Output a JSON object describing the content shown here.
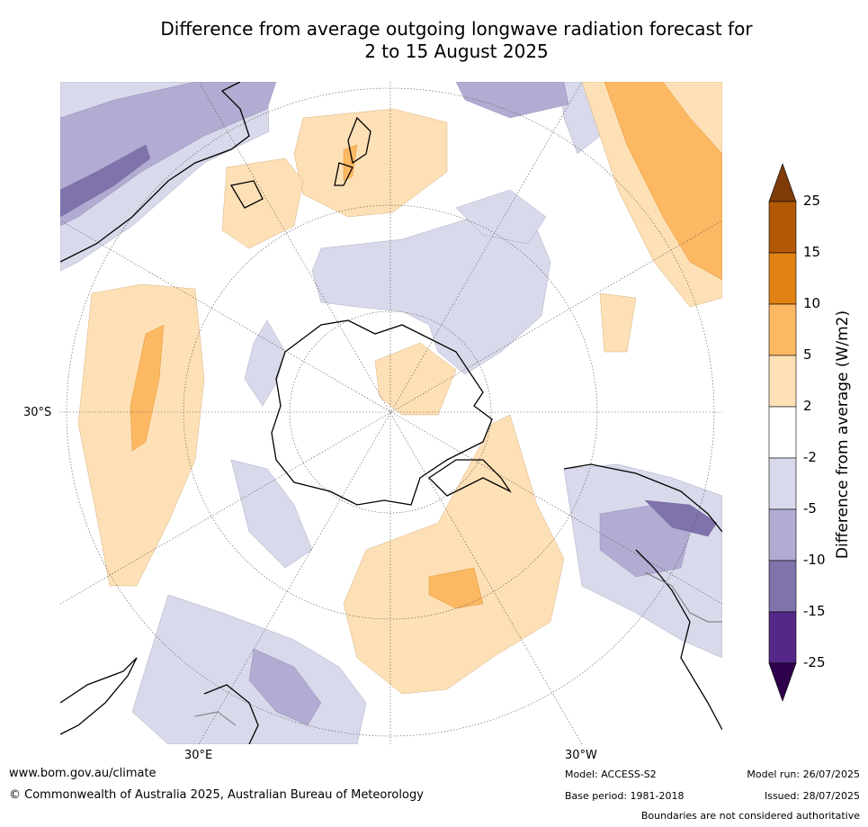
{
  "title": {
    "line1": "Difference from average outgoing longwave radiation forecast for",
    "line2": "2 to 15 August 2025"
  },
  "map": {
    "projection": "south-polar stereographic",
    "graticule_labels": {
      "lat_30s": "30°S",
      "lon_30e": "30°E",
      "lon_30w": "30°W"
    }
  },
  "legend": {
    "axis_label": "Difference from average (W/m2)",
    "ticks": [
      "25",
      "15",
      "10",
      "5",
      "2",
      "-2",
      "-5",
      "-10",
      "-15",
      "-25"
    ],
    "bins": [
      {
        "range": ">25",
        "color": "#7f3b08"
      },
      {
        "range": "15 to 25",
        "color": "#b35806"
      },
      {
        "range": "10 to 15",
        "color": "#e08214"
      },
      {
        "range": "5 to 10",
        "color": "#fdb863"
      },
      {
        "range": "2 to 5",
        "color": "#fee0b6"
      },
      {
        "range": "-2 to 2",
        "color": "#ffffff"
      },
      {
        "range": "-5 to -2",
        "color": "#d8daeb"
      },
      {
        "range": "-10 to -5",
        "color": "#b2abd2"
      },
      {
        "range": "-15 to -10",
        "color": "#8073ac"
      },
      {
        "range": "-25 to -15",
        "color": "#542788"
      },
      {
        "range": "<-25",
        "color": "#2d004b"
      }
    ]
  },
  "footer": {
    "website": "www.bom.gov.au/climate",
    "copyright": "© Commonwealth of Australia 2025, Australian Bureau of Meteorology",
    "model": "Model: ACCESS-S2",
    "base_period": "Base period: 1981-2018",
    "model_run": "Model run: 26/07/2025",
    "issued": "Issued: 28/07/2025",
    "disclaimer": "Boundaries are not considered authoritative"
  }
}
